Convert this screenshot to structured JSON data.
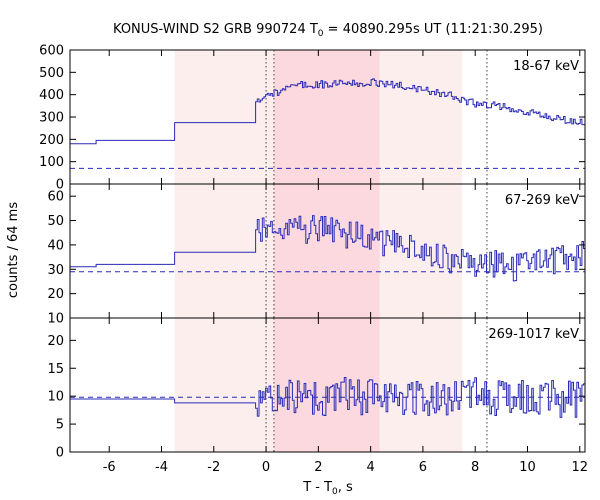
{
  "chart_data": {
    "type": "line",
    "title": {
      "prefix": "KONUS-WIND S2 GRB 990724 T",
      "sub": "0",
      "suffix": " = 40890.295s UT (11:21:30.295)"
    },
    "xlabel": {
      "prefix": "T - T",
      "sub": "0",
      "suffix": ", s"
    },
    "ylabel": "counts / 64 ms",
    "xlim": [
      -7.5,
      12.2
    ],
    "xticks": [
      -6,
      -4,
      -2,
      0,
      2,
      4,
      6,
      8,
      10,
      12
    ],
    "line_color": "#2a2ab8",
    "shaded_intervals": [
      {
        "from": -3.5,
        "to": 4.35,
        "color": "#fdeeee"
      },
      {
        "from": 0.3,
        "to": 4.35,
        "color": "#fbd9de"
      },
      {
        "from": 4.35,
        "to": 7.5,
        "color": "#fdeeee"
      }
    ],
    "vertical_markers": [
      0.0,
      0.3,
      8.45
    ],
    "panels": [
      {
        "label": "18-67 keV",
        "ylim": [
          0,
          600
        ],
        "yticks": [
          0,
          100,
          200,
          300,
          400,
          500,
          600
        ],
        "background_level": 70,
        "pre_burst_steps": [
          {
            "from": -7.5,
            "to": -6.5,
            "value": 180
          },
          {
            "from": -6.5,
            "to": -3.5,
            "value": 195
          },
          {
            "from": -3.5,
            "to": -0.4,
            "value": 275
          }
        ],
        "profile": [
          {
            "t": -0.4,
            "value": 360
          },
          {
            "t": 0.0,
            "value": 390
          },
          {
            "t": 1.0,
            "value": 440
          },
          {
            "t": 2.0,
            "value": 445
          },
          {
            "t": 3.0,
            "value": 450
          },
          {
            "t": 4.0,
            "value": 455
          },
          {
            "t": 5.0,
            "value": 440
          },
          {
            "t": 6.0,
            "value": 420
          },
          {
            "t": 7.0,
            "value": 395
          },
          {
            "t": 8.0,
            "value": 360
          },
          {
            "t": 9.0,
            "value": 345
          },
          {
            "t": 10.0,
            "value": 325
          },
          {
            "t": 11.0,
            "value": 300
          },
          {
            "t": 12.2,
            "value": 270
          }
        ],
        "noise": 18
      },
      {
        "label": "67-269 keV",
        "ylim": [
          10,
          65
        ],
        "yticks": [
          10,
          20,
          30,
          40,
          50,
          60
        ],
        "background_level": 29,
        "pre_burst_steps": [
          {
            "from": -7.5,
            "to": -6.5,
            "value": 31
          },
          {
            "from": -6.5,
            "to": -3.5,
            "value": 32
          },
          {
            "from": -3.5,
            "to": -0.4,
            "value": 37
          }
        ],
        "profile": [
          {
            "t": -0.4,
            "value": 45
          },
          {
            "t": 0.5,
            "value": 48
          },
          {
            "t": 2.0,
            "value": 46
          },
          {
            "t": 3.5,
            "value": 44
          },
          {
            "t": 5.0,
            "value": 40
          },
          {
            "t": 6.5,
            "value": 35
          },
          {
            "t": 8.0,
            "value": 33
          },
          {
            "t": 9.5,
            "value": 31
          },
          {
            "t": 11.0,
            "value": 34
          },
          {
            "t": 12.2,
            "value": 36
          }
        ],
        "noise": 6
      },
      {
        "label": "269-1017 keV",
        "ylim": [
          0,
          24
        ],
        "yticks": [
          0,
          5,
          10,
          15,
          20
        ],
        "background_level": 9.8,
        "pre_burst_steps": [
          {
            "from": -7.5,
            "to": -3.5,
            "value": 9.5
          },
          {
            "from": -3.5,
            "to": -0.4,
            "value": 8.8
          }
        ],
        "profile": [
          {
            "t": -0.4,
            "value": 9
          },
          {
            "t": 2.0,
            "value": 10
          },
          {
            "t": 5.0,
            "value": 10
          },
          {
            "t": 8.0,
            "value": 10
          },
          {
            "t": 12.2,
            "value": 9.5
          }
        ],
        "noise": 3.5
      }
    ]
  }
}
